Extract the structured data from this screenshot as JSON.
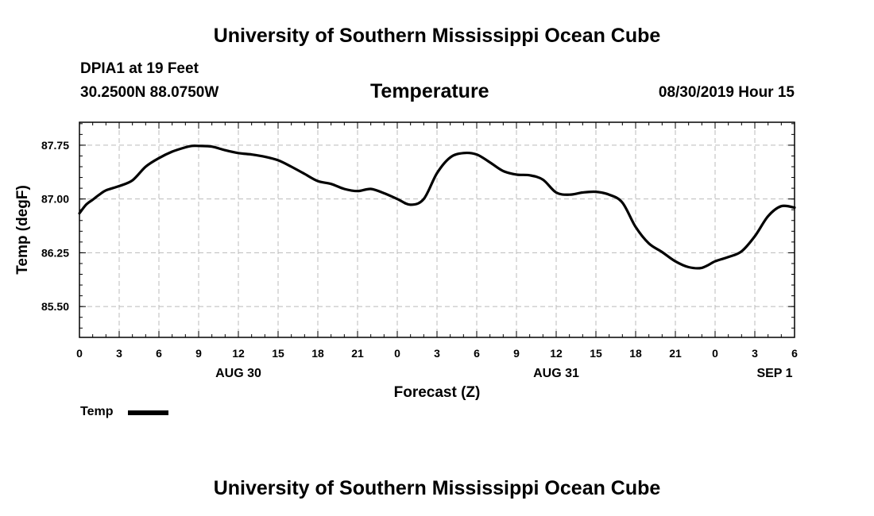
{
  "header": {
    "title_top": "University of Southern Mississippi Ocean Cube",
    "title_bottom": "University of Southern Mississippi Ocean Cube",
    "station": "DPIA1 at 19 Feet",
    "coords": "30.2500N 88.0750W",
    "chart_title": "Temperature",
    "timestamp": "08/30/2019 Hour 15"
  },
  "legend": {
    "label": "Temp",
    "color": "#000000"
  },
  "chart_data": {
    "type": "line",
    "title": "Temperature",
    "xlabel": "Forecast (Z)",
    "ylabel": "Temp (degF)",
    "ylim": [
      85.07,
      88.07
    ],
    "yticks": [
      85.5,
      86.25,
      87.0,
      87.75
    ],
    "ytick_labels": [
      "85.50",
      "86.25",
      "87.00",
      "87.75"
    ],
    "xlim": [
      0,
      54
    ],
    "xticks": [
      0,
      3,
      6,
      9,
      12,
      15,
      18,
      21,
      24,
      27,
      30,
      33,
      36,
      39,
      42,
      45,
      48,
      51,
      54
    ],
    "xtick_labels": [
      "0",
      "3",
      "6",
      "9",
      "12",
      "15",
      "18",
      "21",
      "0",
      "3",
      "6",
      "9",
      "12",
      "15",
      "18",
      "21",
      "0",
      "3",
      "6"
    ],
    "date_labels": [
      {
        "x": 12,
        "label": "AUG 30"
      },
      {
        "x": 36,
        "label": "AUG 31"
      },
      {
        "x": 52.5,
        "label": "SEP 1"
      }
    ],
    "grid": true,
    "legend_position": "bottom-left",
    "series": [
      {
        "name": "Temp",
        "color": "#000000",
        "x": [
          0,
          0.5,
          1,
          1.5,
          2,
          3,
          4,
          5,
          6,
          7,
          8,
          8.5,
          9,
          10,
          11,
          12,
          13,
          14,
          15,
          16,
          17,
          18,
          19,
          20,
          21,
          22,
          23,
          24,
          25,
          26,
          27,
          28,
          29,
          30,
          31,
          32,
          33,
          34,
          35,
          36,
          37,
          38,
          39,
          40,
          41,
          42,
          43,
          44,
          45,
          46,
          47,
          48,
          49,
          50,
          51,
          52,
          53,
          54
        ],
        "y": [
          86.8,
          86.92,
          86.99,
          87.06,
          87.12,
          87.18,
          87.26,
          87.45,
          87.57,
          87.66,
          87.72,
          87.74,
          87.74,
          87.73,
          87.68,
          87.64,
          87.62,
          87.59,
          87.54,
          87.45,
          87.35,
          87.25,
          87.21,
          87.14,
          87.11,
          87.14,
          87.08,
          87.0,
          86.92,
          87.0,
          87.36,
          87.58,
          87.64,
          87.62,
          87.51,
          87.39,
          87.34,
          87.33,
          87.27,
          87.09,
          87.06,
          87.09,
          87.1,
          87.06,
          86.95,
          86.61,
          86.38,
          86.26,
          86.13,
          86.05,
          86.04,
          86.13,
          86.19,
          86.27,
          86.48,
          86.76,
          86.9,
          86.88
        ]
      }
    ]
  }
}
